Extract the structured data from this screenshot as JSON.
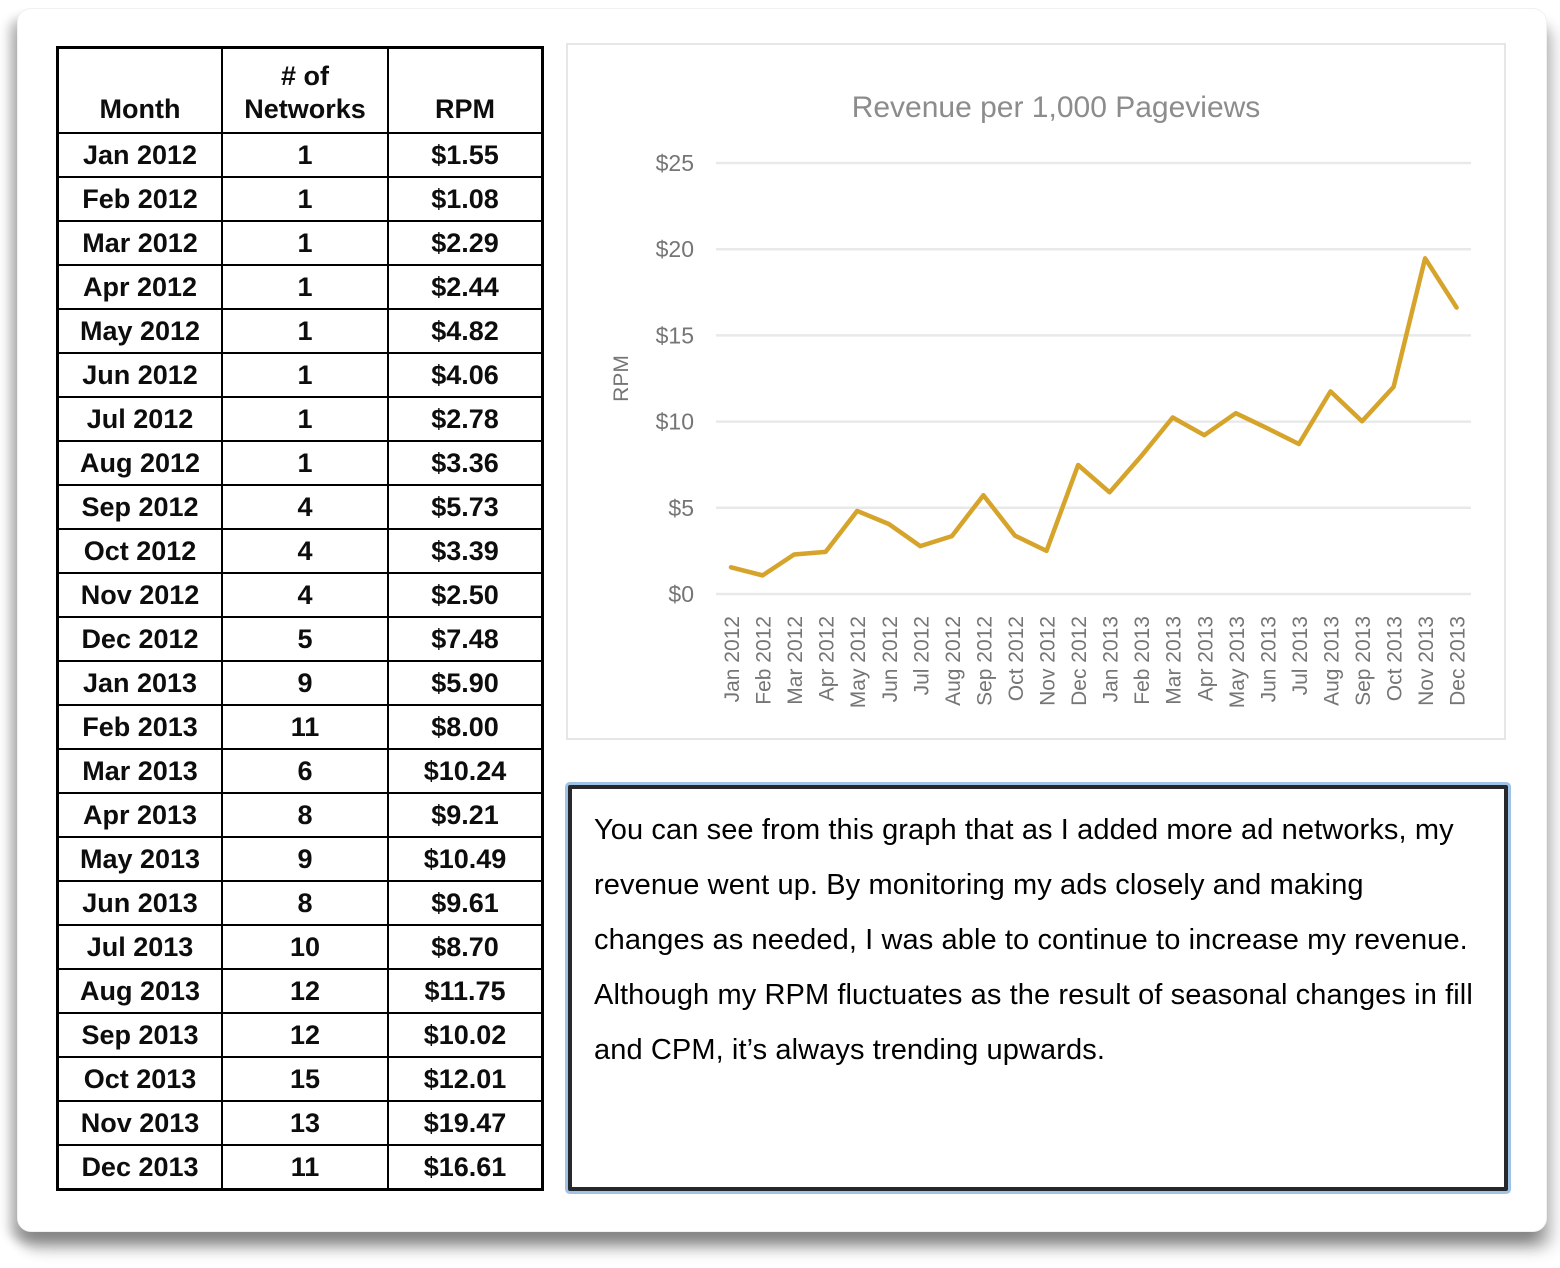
{
  "table": {
    "columns": [
      "Month",
      "# of\nNetworks",
      "RPM"
    ],
    "rows": [
      [
        "Jan 2012",
        "1",
        "$1.55"
      ],
      [
        "Feb 2012",
        "1",
        "$1.08"
      ],
      [
        "Mar 2012",
        "1",
        "$2.29"
      ],
      [
        "Apr 2012",
        "1",
        "$2.44"
      ],
      [
        "May 2012",
        "1",
        "$4.82"
      ],
      [
        "Jun 2012",
        "1",
        "$4.06"
      ],
      [
        "Jul 2012",
        "1",
        "$2.78"
      ],
      [
        "Aug 2012",
        "1",
        "$3.36"
      ],
      [
        "Sep 2012",
        "4",
        "$5.73"
      ],
      [
        "Oct 2012",
        "4",
        "$3.39"
      ],
      [
        "Nov 2012",
        "4",
        "$2.50"
      ],
      [
        "Dec 2012",
        "5",
        "$7.48"
      ],
      [
        "Jan 2013",
        "9",
        "$5.90"
      ],
      [
        "Feb 2013",
        "11",
        "$8.00"
      ],
      [
        "Mar 2013",
        "6",
        "$10.24"
      ],
      [
        "Apr 2013",
        "8",
        "$9.21"
      ],
      [
        "May 2013",
        "9",
        "$10.49"
      ],
      [
        "Jun 2013",
        "8",
        "$9.61"
      ],
      [
        "Jul 2013",
        "10",
        "$8.70"
      ],
      [
        "Aug 2013",
        "12",
        "$11.75"
      ],
      [
        "Sep 2013",
        "12",
        "$10.02"
      ],
      [
        "Oct 2013",
        "15",
        "$12.01"
      ],
      [
        "Nov 2013",
        "13",
        "$19.47"
      ],
      [
        "Dec 2013",
        "11",
        "$16.61"
      ]
    ]
  },
  "chart_data": {
    "type": "line",
    "title": "Revenue per 1,000 Pageviews",
    "xlabel": "",
    "ylabel": "RPM",
    "categories": [
      "Jan 2012",
      "Feb 2012",
      "Mar 2012",
      "Apr 2012",
      "May 2012",
      "Jun 2012",
      "Jul 2012",
      "Aug 2012",
      "Sep 2012",
      "Oct 2012",
      "Nov 2012",
      "Dec 2012",
      "Jan 2013",
      "Feb 2013",
      "Mar 2013",
      "Apr 2013",
      "May 2013",
      "Jun 2013",
      "Jul 2013",
      "Aug 2013",
      "Sep 2013",
      "Oct 2013",
      "Nov 2013",
      "Dec 2013"
    ],
    "series": [
      {
        "name": "RPM",
        "color": "#D6A42A",
        "values": [
          1.55,
          1.08,
          2.29,
          2.44,
          4.82,
          4.06,
          2.78,
          3.36,
          5.73,
          3.39,
          2.5,
          7.48,
          5.9,
          8.0,
          10.24,
          9.21,
          10.49,
          9.61,
          8.7,
          11.75,
          10.02,
          12.01,
          19.47,
          16.61
        ]
      }
    ],
    "ylim": [
      0,
      25
    ],
    "ytick_step": 5,
    "ytick_prefix": "$",
    "grid": true,
    "legend": "none",
    "colors": {
      "title": "#8C8C8C",
      "tick": "#757575",
      "grid": "#E9E9E9"
    }
  },
  "note": {
    "text": "You can see from this graph that as I added more ad networks, my revenue went up. By monitoring my ads closely and making changes as needed, I was able to continue to increase my revenue. Although my RPM fluctuates as the result of seasonal changes in fill and CPM, it’s always trending upwards."
  }
}
